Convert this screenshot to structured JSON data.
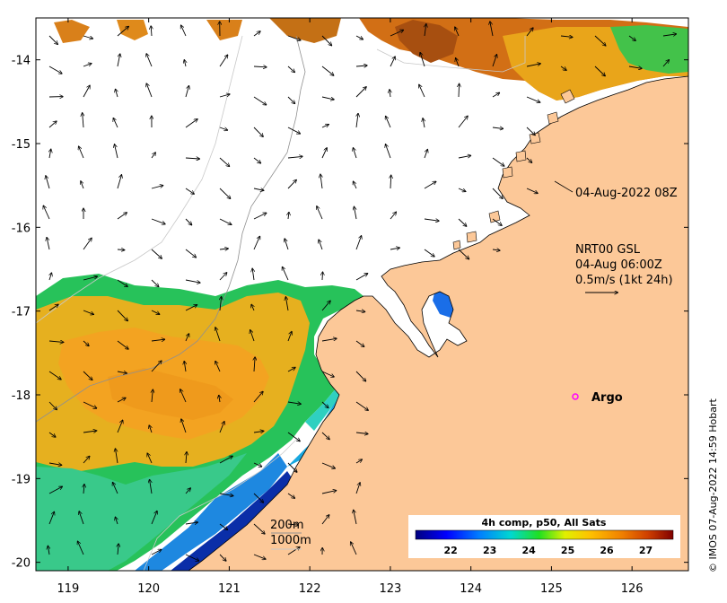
{
  "map": {
    "lon_ticks": [
      "119",
      "120",
      "121",
      "122",
      "123",
      "124",
      "125",
      "126"
    ],
    "lat_ticks": [
      "-14",
      "-15",
      "-16",
      "-17",
      "-18",
      "-19",
      "-20"
    ],
    "lon_range": [
      118.6,
      126.7
    ],
    "lat_range": [
      -20.1,
      -13.5
    ]
  },
  "annotations": {
    "timestamp": "04-Aug-2022 08Z",
    "current_source": "NRT00 GSL",
    "current_time": "04-Aug 06:00Z",
    "current_scale": "0.5m/s (1kt 24h)",
    "argo_label": "Argo",
    "isobath_200": "200m",
    "isobath_1000": "1000m",
    "credit": "© IMOS 07-Aug-2022 14:59 Hobart"
  },
  "colorbar": {
    "title": "4h comp, p50, All Sats",
    "ticks": [
      "22",
      "23",
      "24",
      "25",
      "26",
      "27"
    ],
    "range": [
      21.1,
      27.7
    ]
  },
  "colors": {
    "land": "#fcc898",
    "ocean_nodata": "#ffffff",
    "argo_marker": "#ff00ff"
  }
}
